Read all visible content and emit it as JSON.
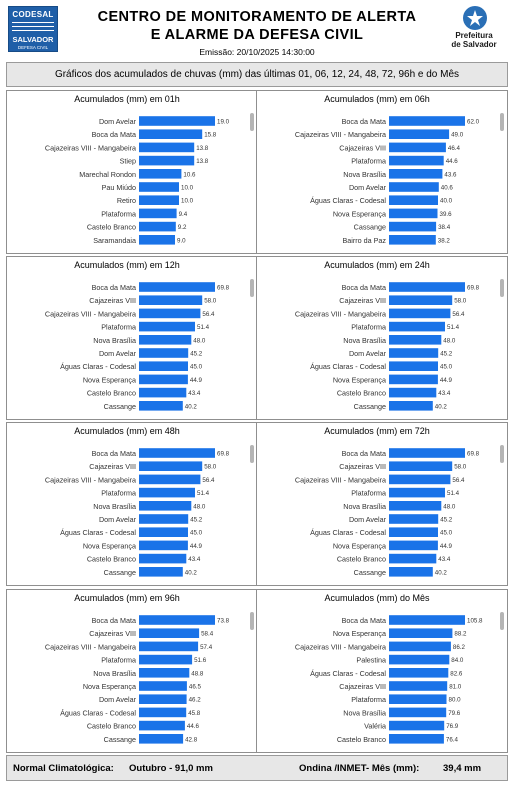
{
  "header": {
    "logo_left_line1": "CODESAL",
    "logo_left_line2": "SALVADOR",
    "logo_left_line3": "DEFESA CIVIL",
    "title_line1": "CENTRO DE MONITORAMENTO DE ALERTA",
    "title_line2": "E ALARME DA DEFESA CIVIL",
    "emissao": "Emissão: 20/10/2025 14:30:00",
    "logo_right_line1": "Prefeitura",
    "logo_right_line2": "de Salvador"
  },
  "subtitle": "Gráficos dos acumulados de chuvas (mm) das últimas 01, 06, 12, 24, 48, 72, 96h e do Mês",
  "chart_data": [
    {
      "type": "bar",
      "orientation": "horizontal",
      "title": "Acumulados (mm) em 01h",
      "categories": [
        "Dom Avelar",
        "Boca da Mata",
        "Cajazeiras VIII - Mangabeira",
        "Stiep",
        "Marechal Rondon",
        "Pau Miúdo",
        "Retiro",
        "Plataforma",
        "Castelo Branco",
        "Saramandaia"
      ],
      "values": [
        19.0,
        15.8,
        13.8,
        13.8,
        10.6,
        10.0,
        10.0,
        9.4,
        9.2,
        9.0
      ],
      "value_labels": [
        "19.0",
        "15.8",
        "13.8",
        "13.8",
        "10.6",
        "10.0",
        "10.0",
        "9.4",
        "9.2",
        "9.0"
      ],
      "color": "#1a73e8"
    },
    {
      "type": "bar",
      "orientation": "horizontal",
      "title": "Acumulados (mm) em 06h",
      "categories": [
        "Boca da Mata",
        "Cajazeiras VIII - Mangabeira",
        "Cajazeiras VIII",
        "Plataforma",
        "Nova Brasília",
        "Dom Avelar",
        "Águas Claras - Codesal",
        "Nova Esperança",
        "Cassange",
        "Bairro da Paz"
      ],
      "values": [
        62.0,
        49.0,
        46.4,
        44.6,
        43.6,
        40.6,
        40.0,
        39.6,
        38.4,
        38.2
      ],
      "value_labels": [
        "62.0",
        "49.0",
        "46.4",
        "44.6",
        "43.6",
        "40.6",
        "40.0",
        "39.6",
        "38.4",
        "38.2"
      ],
      "color": "#1a73e8"
    },
    {
      "type": "bar",
      "orientation": "horizontal",
      "title": "Acumulados (mm) em 12h",
      "categories": [
        "Boca da Mata",
        "Cajazeiras VIII",
        "Cajazeiras VIII - Mangabeira",
        "Plataforma",
        "Nova Brasília",
        "Dom Avelar",
        "Águas Claras - Codesal",
        "Nova Esperança",
        "Castelo Branco",
        "Cassange"
      ],
      "values": [
        69.8,
        58.0,
        56.4,
        51.4,
        48.0,
        45.2,
        45.0,
        44.9,
        43.4,
        40.2
      ],
      "value_labels": [
        "69.8",
        "58.0",
        "56.4",
        "51.4",
        "48.0",
        "45.2",
        "45.0",
        "44.9",
        "43.4",
        "40.2"
      ],
      "color": "#1a73e8"
    },
    {
      "type": "bar",
      "orientation": "horizontal",
      "title": "Acumulados (mm) em 24h",
      "categories": [
        "Boca da Mata",
        "Cajazeiras VIII",
        "Cajazeiras VIII - Mangabeira",
        "Plataforma",
        "Nova Brasília",
        "Dom Avelar",
        "Águas Claras - Codesal",
        "Nova Esperança",
        "Castelo Branco",
        "Cassange"
      ],
      "values": [
        69.8,
        58.0,
        56.4,
        51.4,
        48.0,
        45.2,
        45.0,
        44.9,
        43.4,
        40.2
      ],
      "value_labels": [
        "69.8",
        "58.0",
        "56.4",
        "51.4",
        "48.0",
        "45.2",
        "45.0",
        "44.9",
        "43.4",
        "40.2"
      ],
      "color": "#1a73e8"
    },
    {
      "type": "bar",
      "orientation": "horizontal",
      "title": "Acumulados (mm) em 48h",
      "categories": [
        "Boca da Mata",
        "Cajazeiras VIII",
        "Cajazeiras VIII - Mangabeira",
        "Plataforma",
        "Nova Brasília",
        "Dom Avelar",
        "Águas Claras - Codesal",
        "Nova Esperança",
        "Castelo Branco",
        "Cassange"
      ],
      "values": [
        69.8,
        58.0,
        56.4,
        51.4,
        48.0,
        45.2,
        45.0,
        44.9,
        43.4,
        40.2
      ],
      "value_labels": [
        "69.8",
        "58.0",
        "56.4",
        "51.4",
        "48.0",
        "45.2",
        "45.0",
        "44.9",
        "43.4",
        "40.2"
      ],
      "color": "#1a73e8"
    },
    {
      "type": "bar",
      "orientation": "horizontal",
      "title": "Acumulados (mm) em 72h",
      "categories": [
        "Boca da Mata",
        "Cajazeiras VIII",
        "Cajazeiras VIII - Mangabeira",
        "Plataforma",
        "Nova Brasília",
        "Dom Avelar",
        "Águas Claras - Codesal",
        "Nova Esperança",
        "Castelo Branco",
        "Cassange"
      ],
      "values": [
        69.8,
        58.0,
        56.4,
        51.4,
        48.0,
        45.2,
        45.0,
        44.9,
        43.4,
        40.2
      ],
      "value_labels": [
        "69.8",
        "58.0",
        "56.4",
        "51.4",
        "48.0",
        "45.2",
        "45.0",
        "44.9",
        "43.4",
        "40.2"
      ],
      "color": "#1a73e8"
    },
    {
      "type": "bar",
      "orientation": "horizontal",
      "title": "Acumulados (mm) em 96h",
      "categories": [
        "Boca da Mata",
        "Cajazeiras VIII",
        "Cajazeiras VIII - Mangabeira",
        "Plataforma",
        "Nova Brasília",
        "Nova Esperança",
        "Dom Avelar",
        "Águas Claras - Codesal",
        "Castelo Branco",
        "Cassange"
      ],
      "values": [
        73.8,
        58.4,
        57.4,
        51.6,
        48.8,
        46.5,
        46.2,
        45.8,
        44.6,
        42.8
      ],
      "value_labels": [
        "73.8",
        "58.4",
        "57.4",
        "51.6",
        "48.8",
        "46.5",
        "46.2",
        "45.8",
        "44.6",
        "42.8"
      ],
      "color": "#1a73e8"
    },
    {
      "type": "bar",
      "orientation": "horizontal",
      "title": "Acumulados (mm) do Mês",
      "categories": [
        "Boca da Mata",
        "Nova Esperança",
        "Cajazeiras VIII - Mangabeira",
        "Palestina",
        "Águas Claras - Codesal",
        "Cajazeiras VIII",
        "Plataforma",
        "Nova Brasília",
        "Valéria",
        "Castelo Branco"
      ],
      "values": [
        105.8,
        88.2,
        86.2,
        84.0,
        82.6,
        81.0,
        80.0,
        79.6,
        76.9,
        76.4
      ],
      "value_labels": [
        "105.8",
        "88.2",
        "86.2",
        "84.0",
        "82.6",
        "81.0",
        "80.0",
        "79.6",
        "76.9",
        "76.4"
      ],
      "color": "#1a73e8"
    }
  ],
  "footer": {
    "normal_label": "Normal Climatológica:",
    "normal_value": "Outubro - 91,0 mm",
    "ondina_label": "Ondina /INMET- Mês (mm):",
    "ondina_value": "39,4  mm"
  }
}
